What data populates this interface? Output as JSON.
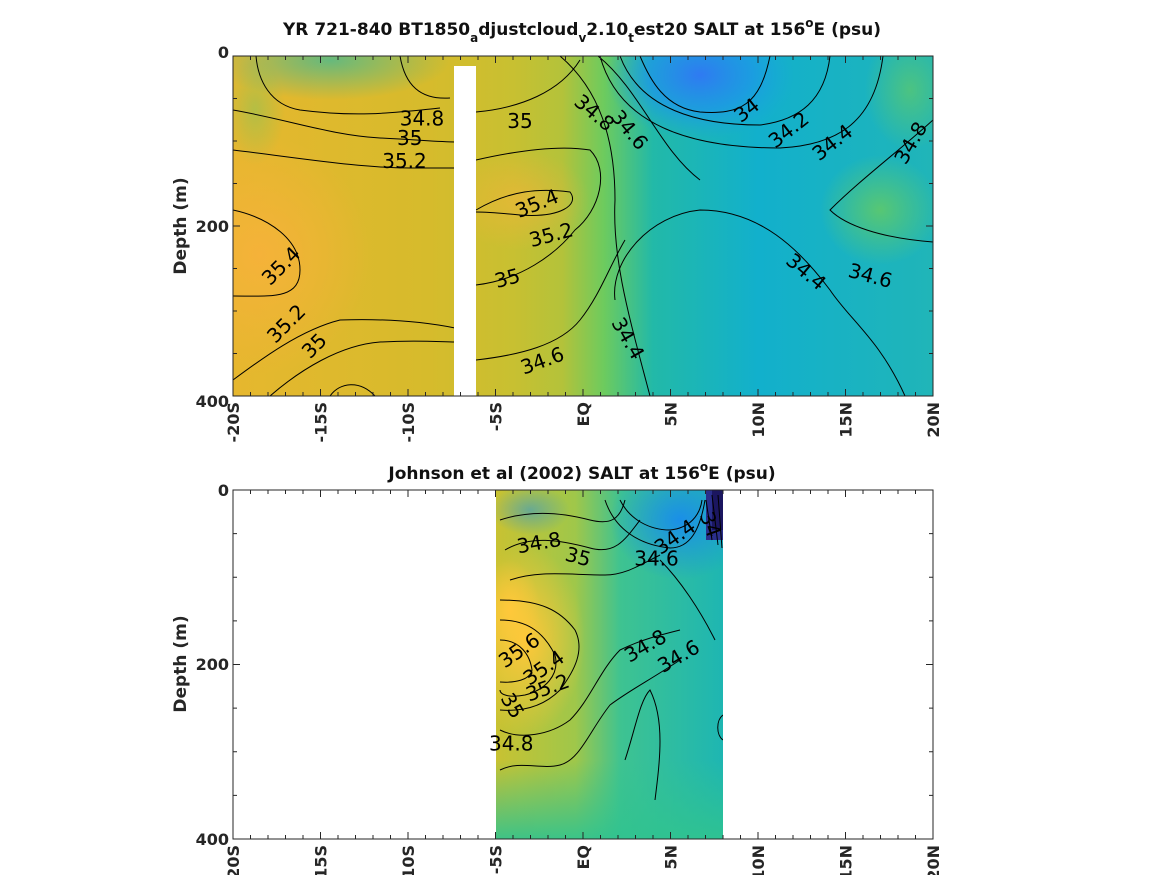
{
  "chart_data": [
    {
      "type": "heatmap",
      "title": "YR 721-840 BT1850_adjustcloud_v2.10_test20 SALT at 156^oE (psu)",
      "title_parts": {
        "pre": "YR 721-840 BT1850",
        "s1": "a",
        "mid1": "djustcloud",
        "s2": "v",
        "mid2": "2.10",
        "s3": "t",
        "mid3": "est20 SALT at 156",
        "sup": "o",
        "post": "E (psu)"
      },
      "ylabel": "Depth (m)",
      "x_ticks": [
        "-20S",
        "-15S",
        "-10S",
        "-5S",
        "EQ",
        "5N",
        "10N",
        "15N",
        "20N"
      ],
      "y_ticks": [
        "0",
        "200",
        "400"
      ],
      "xlim": [
        -20,
        20
      ],
      "ylim": [
        0,
        400
      ],
      "y_reversed": true,
      "data_range": [
        -20,
        20
      ],
      "missing_band": [
        -7.1,
        -5.9
      ],
      "contour_labels": [
        {
          "text": "34.8",
          "x": -9.2,
          "y": 75,
          "rot": 0
        },
        {
          "text": "35",
          "x": -9.9,
          "y": 98,
          "rot": 0
        },
        {
          "text": "35.2",
          "x": -10.2,
          "y": 125,
          "rot": 0
        },
        {
          "text": "35.4",
          "x": -17.2,
          "y": 248,
          "rot": -45
        },
        {
          "text": "35.2",
          "x": -16.9,
          "y": 316,
          "rot": -45
        },
        {
          "text": "35",
          "x": -15.3,
          "y": 342,
          "rot": -45
        },
        {
          "text": "35",
          "x": -3.6,
          "y": 78,
          "rot": 0
        },
        {
          "text": "35.4",
          "x": -2.6,
          "y": 175,
          "rot": -22
        },
        {
          "text": "35.2",
          "x": -1.8,
          "y": 212,
          "rot": -15
        },
        {
          "text": "35",
          "x": -4.3,
          "y": 263,
          "rot": -15
        },
        {
          "text": "34.6",
          "x": -2.3,
          "y": 360,
          "rot": -20
        },
        {
          "text": "34.8",
          "x": 0.6,
          "y": 68,
          "rot": 40
        },
        {
          "text": "34.6",
          "x": 2.6,
          "y": 88,
          "rot": 50
        },
        {
          "text": "34",
          "x": 9.4,
          "y": 65,
          "rot": -38
        },
        {
          "text": "34.2",
          "x": 11.8,
          "y": 88,
          "rot": -38
        },
        {
          "text": "34.4",
          "x": 14.3,
          "y": 103,
          "rot": -38
        },
        {
          "text": "34.8",
          "x": 18.8,
          "y": 103,
          "rot": -60
        },
        {
          "text": "34.4",
          "x": 12.7,
          "y": 255,
          "rot": 40
        },
        {
          "text": "34.6",
          "x": 16.4,
          "y": 260,
          "rot": 15
        },
        {
          "text": "34.4",
          "x": 2.5,
          "y": 333,
          "rot": 60
        }
      ]
    },
    {
      "type": "heatmap",
      "title": "Johnson et al (2002) SALT at 156^oE (psu)",
      "title_parts": {
        "pre": "Johnson et al (2002) SALT at 156",
        "sup": "o",
        "post": "E (psu)"
      },
      "ylabel": "Depth (m)",
      "x_ticks": [
        "-20S",
        "-15S",
        "-10S",
        "-5S",
        "EQ",
        "5N",
        "10N",
        "15N",
        "20N"
      ],
      "y_ticks": [
        "0",
        "200",
        "400"
      ],
      "xlim": [
        -20,
        20
      ],
      "ylim": [
        0,
        400
      ],
      "y_reversed": true,
      "data_range": [
        -5,
        8
      ],
      "contour_labels": [
        {
          "text": "34.8",
          "x": -2.5,
          "y": 62,
          "rot": -10
        },
        {
          "text": "35",
          "x": -0.3,
          "y": 78,
          "rot": 15
        },
        {
          "text": "34.4",
          "x": 5.3,
          "y": 55,
          "rot": -35
        },
        {
          "text": "34.6",
          "x": 4.2,
          "y": 80,
          "rot": 0
        },
        {
          "text": "34",
          "x": 7.2,
          "y": 40,
          "rot": 70
        },
        {
          "text": "35.6",
          "x": -3.6,
          "y": 185,
          "rot": -35
        },
        {
          "text": "35.4",
          "x": -2.2,
          "y": 205,
          "rot": -35
        },
        {
          "text": "35.2",
          "x": -2.0,
          "y": 228,
          "rot": -20
        },
        {
          "text": "35",
          "x": -4.1,
          "y": 248,
          "rot": 60
        },
        {
          "text": "34.8",
          "x": -4.1,
          "y": 292,
          "rot": 0
        },
        {
          "text": "34.8",
          "x": 3.6,
          "y": 180,
          "rot": -30
        },
        {
          "text": "34.6",
          "x": 5.5,
          "y": 192,
          "rot": -30
        }
      ]
    }
  ]
}
